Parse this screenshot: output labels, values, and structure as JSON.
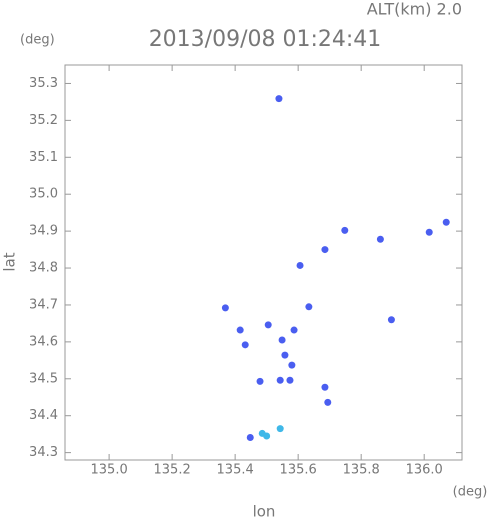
{
  "chart_data": {
    "type": "scatter",
    "title": "2013/09/08 01:24:41",
    "subtitle": "ALT(km) 2.0",
    "y_unit": "(deg)",
    "x_unit": "(deg)",
    "x_label": "lon",
    "y_label": "lat",
    "xlim": [
      134.86,
      136.12
    ],
    "ylim": [
      34.28,
      35.35
    ],
    "xticks": [
      {
        "value": 135,
        "label": "135.0"
      },
      135.2,
      135.4,
      135.6,
      135.8,
      {
        "value": 136,
        "label": "136.0"
      }
    ],
    "yticks": [
      34.3,
      34.4,
      34.5,
      34.6,
      34.7,
      34.8,
      34.9,
      {
        "value": 35,
        "label": "35.0"
      },
      35.1,
      35.2,
      35.3
    ],
    "series": [
      {
        "color": "#4a5ef0",
        "x": [
          135.539,
          136.016,
          136.07,
          135.748,
          135.861,
          135.685,
          135.606,
          135.369,
          135.634,
          135.505,
          135.896,
          135.416,
          135.587,
          135.549,
          135.432,
          135.558,
          135.58,
          135.543,
          135.479,
          135.574,
          135.685,
          135.694,
          135.448
        ],
        "y": [
          35.259,
          34.897,
          34.924,
          34.902,
          34.878,
          34.85,
          34.807,
          34.692,
          34.695,
          34.646,
          34.66,
          34.632,
          34.632,
          34.605,
          34.592,
          34.564,
          34.537,
          34.496,
          34.493,
          34.496,
          34.477,
          34.436,
          34.341
        ]
      },
      {
        "color": "#3fb8e8",
        "x": [
          135.486,
          135.543,
          135.5
        ],
        "y": [
          34.352,
          34.365,
          34.345
        ]
      }
    ]
  }
}
